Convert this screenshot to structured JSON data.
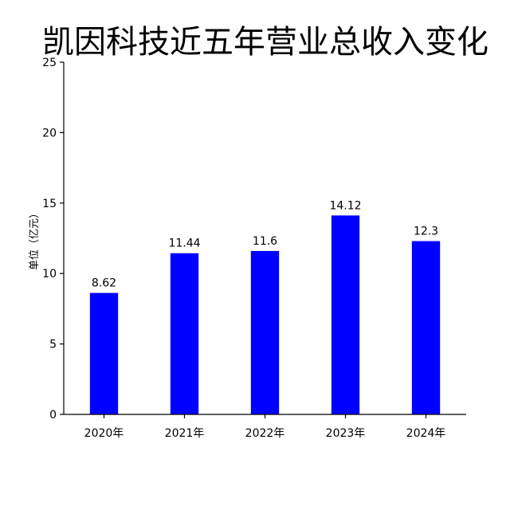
{
  "chart_data": {
    "type": "bar",
    "title": "凯因科技近五年营业总收入变化",
    "xlabel": "",
    "ylabel": "单位（亿元）",
    "categories": [
      "2020年",
      "2021年",
      "2022年",
      "2023年",
      "2024年"
    ],
    "values": [
      8.62,
      11.44,
      11.6,
      14.12,
      12.3
    ],
    "data_labels": [
      "8.62",
      "11.44",
      "11.6",
      "14.12",
      "12.3"
    ],
    "ylim": [
      0,
      25
    ],
    "yticks": [
      0,
      5,
      10,
      15,
      20,
      25
    ],
    "bar_color": "#0000ff",
    "grid": false,
    "legend": "none"
  }
}
